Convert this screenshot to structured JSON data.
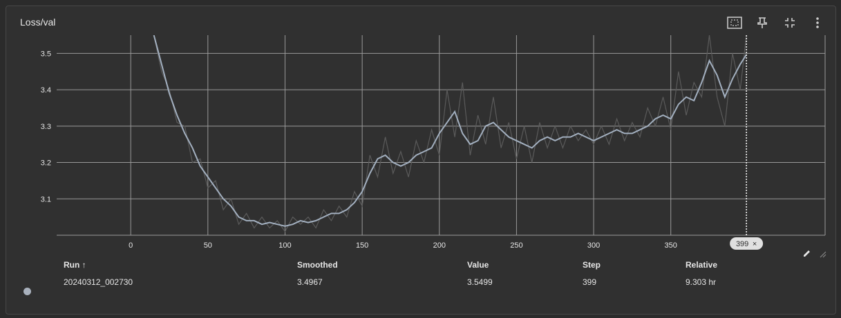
{
  "card": {
    "title": "Loss/val"
  },
  "toolbar": {
    "icons": [
      "fit-domain-icon",
      "pin-icon",
      "collapse-icon",
      "more-vert-icon"
    ]
  },
  "colors": {
    "background": "#303030",
    "grid": "#9a9a9a",
    "smoothed": "#a3b0c0",
    "raw": "#5b5b5b",
    "text": "#e6e6e6"
  },
  "chart_data": {
    "type": "line",
    "title": "Loss/val",
    "xlabel": "",
    "ylabel": "",
    "xlim": [
      -48,
      450
    ],
    "ylim": [
      3.0,
      3.55
    ],
    "x_ticks": [
      "0",
      "50",
      "100",
      "150",
      "200",
      "250",
      "300",
      "350"
    ],
    "y_ticks": [
      "3.1",
      "3.2",
      "3.3",
      "3.4",
      "3.5"
    ],
    "grid": true,
    "hover_step": "399",
    "series": [
      {
        "name": "20240312_002730",
        "x": [
          15,
          20,
          25,
          30,
          35,
          40,
          45,
          50,
          55,
          60,
          65,
          70,
          75,
          80,
          85,
          90,
          95,
          100,
          105,
          110,
          115,
          120,
          125,
          130,
          135,
          140,
          145,
          150,
          155,
          160,
          165,
          170,
          175,
          180,
          185,
          190,
          195,
          200,
          205,
          210,
          215,
          220,
          225,
          230,
          235,
          240,
          245,
          250,
          255,
          260,
          265,
          270,
          275,
          280,
          285,
          290,
          295,
          300,
          305,
          310,
          315,
          320,
          325,
          330,
          335,
          340,
          345,
          350,
          355,
          360,
          365,
          370,
          375,
          380,
          385,
          390,
          395,
          399
        ],
        "smoothed": [
          3.55,
          3.47,
          3.39,
          3.33,
          3.28,
          3.24,
          3.19,
          3.16,
          3.13,
          3.1,
          3.08,
          3.05,
          3.04,
          3.04,
          3.03,
          3.035,
          3.03,
          3.025,
          3.03,
          3.04,
          3.035,
          3.04,
          3.05,
          3.06,
          3.06,
          3.07,
          3.09,
          3.12,
          3.17,
          3.21,
          3.22,
          3.2,
          3.19,
          3.2,
          3.22,
          3.23,
          3.24,
          3.28,
          3.31,
          3.34,
          3.28,
          3.25,
          3.26,
          3.3,
          3.31,
          3.29,
          3.27,
          3.26,
          3.25,
          3.24,
          3.26,
          3.27,
          3.26,
          3.27,
          3.27,
          3.28,
          3.27,
          3.26,
          3.27,
          3.28,
          3.29,
          3.28,
          3.28,
          3.29,
          3.3,
          3.32,
          3.33,
          3.32,
          3.36,
          3.38,
          3.37,
          3.42,
          3.48,
          3.44,
          3.38,
          3.43,
          3.47,
          3.4967
        ],
        "values": [
          3.55,
          3.45,
          3.4,
          3.31,
          3.3,
          3.2,
          3.21,
          3.13,
          3.15,
          3.07,
          3.1,
          3.03,
          3.06,
          3.02,
          3.05,
          3.02,
          3.04,
          3.01,
          3.05,
          3.03,
          3.05,
          3.02,
          3.07,
          3.04,
          3.08,
          3.05,
          3.12,
          3.08,
          3.22,
          3.16,
          3.27,
          3.17,
          3.23,
          3.16,
          3.26,
          3.2,
          3.29,
          3.22,
          3.4,
          3.27,
          3.42,
          3.22,
          3.33,
          3.25,
          3.38,
          3.24,
          3.31,
          3.21,
          3.3,
          3.2,
          3.31,
          3.24,
          3.3,
          3.24,
          3.3,
          3.26,
          3.29,
          3.25,
          3.3,
          3.25,
          3.32,
          3.26,
          3.31,
          3.27,
          3.35,
          3.3,
          3.38,
          3.29,
          3.45,
          3.33,
          3.42,
          3.38,
          3.55,
          3.38,
          3.3,
          3.5,
          3.4,
          3.5499
        ]
      }
    ]
  },
  "table": {
    "headers": {
      "run": "Run ↑",
      "smoothed": "Smoothed",
      "value": "Value",
      "step": "Step",
      "relative": "Relative"
    },
    "row": {
      "run": "20240312_002730",
      "smoothed": "3.4967",
      "value": "3.5499",
      "step": "399",
      "relative": "9.303 hr"
    }
  }
}
